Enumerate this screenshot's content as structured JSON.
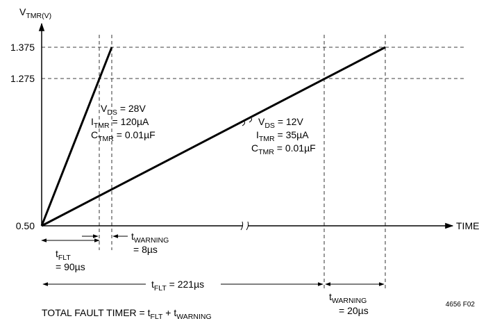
{
  "y_axis": {
    "label_main": "V",
    "label_sub": "TMR(V)"
  },
  "x_axis": {
    "label": "TIME"
  },
  "levels": {
    "top": "1.375",
    "mid": "1.275",
    "base": "0.50"
  },
  "steep_curve": {
    "vds": "V",
    "vds_sub": "DS",
    "vds_val": " = 28V",
    "itmr": "I",
    "itmr_sub": "TMR",
    "itmr_val": " = 120µA",
    "ctmr": "C",
    "ctmr_sub": "TMR",
    "ctmr_val": " = 0.01µF"
  },
  "shallow_curve": {
    "vds": "V",
    "vds_sub": "DS",
    "vds_val": " = 12V",
    "itmr": "I",
    "itmr_sub": "TMR",
    "itmr_val": " = 35µA",
    "ctmr": "C",
    "ctmr_sub": "TMR",
    "ctmr_val": " = 0.01µF"
  },
  "timing": {
    "t_warning_a": "t",
    "t_warning_a_sub": "WARNING",
    "t_warning_a_val": "= 8µs",
    "t_flt_a": "t",
    "t_flt_a_sub": "FLT",
    "t_flt_a_val": "= 90µs",
    "t_flt_b": "t",
    "t_flt_b_sub": "FLT",
    "t_flt_b_val": " = 221µs",
    "t_warning_b": "t",
    "t_warning_b_sub": "WARNING",
    "t_warning_b_val": "= 20µs"
  },
  "footer": {
    "total_main": "TOTAL FAULT TIMER = t",
    "total_sub1": "FLT",
    "total_mid": " + t",
    "total_sub2": "WARNING"
  },
  "figure_code": "4656 F02"
}
